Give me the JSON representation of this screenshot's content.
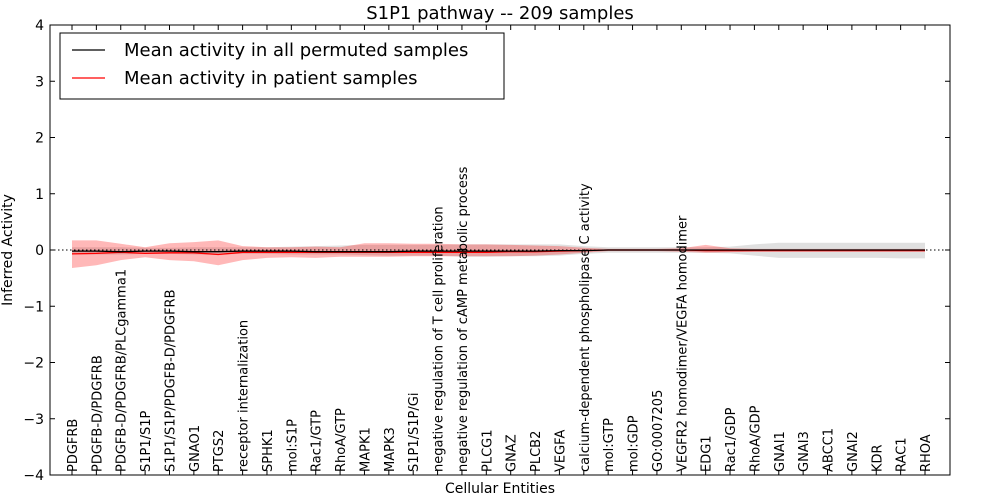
{
  "chart_data": {
    "type": "line",
    "title": "S1P1 pathway -- 209 samples",
    "xlabel": "Cellular Entities",
    "ylabel": "Inferred Activity",
    "ylim": [
      -4,
      4
    ],
    "yticks": [
      -4,
      -3,
      -2,
      -1,
      0,
      1,
      2,
      3,
      4
    ],
    "ytick_labels": [
      "−4",
      "−3",
      "−2",
      "−1",
      "0",
      "1",
      "2",
      "3",
      "4"
    ],
    "legend_position": "top-left",
    "legend": [
      {
        "label": "Mean activity in all permuted samples",
        "color": "#000000"
      },
      {
        "label": "Mean activity in patient samples",
        "color": "#ff0000"
      }
    ],
    "categories": [
      "PDGFRB",
      "PDGFB-D/PDGFRB",
      "PDGFB-D/PDGFRB/PLCgamma1",
      "S1P1/S1P",
      "S1P1/S1P/PDGFB-D/PDGFRB",
      "GNAO1",
      "PTGS2",
      "receptor internalization",
      "SPHK1",
      "mol:S1P",
      "Rac1/GTP",
      "RhoA/GTP",
      "MAPK1",
      "MAPK3",
      "S1P1/S1P/Gi",
      "negative regulation of T cell proliferation",
      "negative regulation of cAMP metabolic process",
      "PLCG1",
      "GNAZ",
      "PLCB2",
      "VEGFA",
      "calcium-dependent phospholipase C activity",
      "mol:GTP",
      "mol:GDP",
      "GO:0007205",
      "VEGFR2 homodimer/VEGFA homodimer",
      "EDG1",
      "Rac1/GDP",
      "RhoA/GDP",
      "GNAI1",
      "GNAI3",
      "ABCC1",
      "GNAI2",
      "KDR",
      "RAC1",
      "RHOA"
    ],
    "series": [
      {
        "name": "Mean activity in all permuted samples",
        "color": "#000000",
        "values": [
          -0.02,
          -0.02,
          -0.03,
          -0.02,
          -0.02,
          -0.03,
          -0.03,
          -0.02,
          -0.02,
          -0.02,
          -0.03,
          -0.03,
          -0.03,
          -0.03,
          -0.02,
          -0.02,
          -0.02,
          -0.02,
          -0.02,
          -0.02,
          -0.01,
          -0.01,
          0.0,
          0.0,
          0.0,
          0.0,
          0.0,
          0.0,
          0.0,
          0.0,
          0.0,
          0.0,
          0.0,
          0.0,
          0.0,
          0.0
        ],
        "lower": [
          -0.08,
          -0.08,
          -0.08,
          -0.07,
          -0.07,
          -0.08,
          -0.08,
          -0.07,
          -0.07,
          -0.08,
          -0.08,
          -0.08,
          -0.09,
          -0.1,
          -0.1,
          -0.1,
          -0.12,
          -0.12,
          -0.11,
          -0.11,
          -0.1,
          -0.07,
          -0.05,
          -0.05,
          -0.05,
          -0.05,
          -0.05,
          -0.06,
          -0.1,
          -0.14,
          -0.14,
          -0.14,
          -0.14,
          -0.14,
          -0.15,
          -0.15
        ],
        "upper": [
          0.05,
          0.05,
          0.05,
          0.04,
          0.04,
          0.05,
          0.05,
          0.05,
          0.05,
          0.06,
          0.07,
          0.08,
          0.09,
          0.09,
          0.09,
          0.09,
          0.1,
          0.1,
          0.1,
          0.1,
          0.1,
          0.07,
          0.05,
          0.05,
          0.05,
          0.05,
          0.05,
          0.06,
          0.1,
          0.13,
          0.13,
          0.13,
          0.13,
          0.13,
          0.13,
          0.13
        ]
      },
      {
        "name": "Mean activity in patient samples",
        "color": "#ff0000",
        "values": [
          -0.07,
          -0.06,
          -0.04,
          -0.06,
          -0.05,
          -0.05,
          -0.08,
          -0.04,
          -0.04,
          -0.04,
          -0.04,
          -0.04,
          -0.04,
          -0.04,
          -0.04,
          -0.04,
          -0.04,
          -0.04,
          -0.03,
          -0.03,
          -0.02,
          -0.01,
          0.0,
          0.0,
          0.0,
          0.0,
          -0.01,
          -0.01,
          -0.01,
          -0.01,
          -0.01,
          -0.01,
          -0.01,
          -0.01,
          -0.01,
          -0.01
        ],
        "lower": [
          -0.32,
          -0.27,
          -0.18,
          -0.13,
          -0.18,
          -0.2,
          -0.27,
          -0.18,
          -0.14,
          -0.13,
          -0.14,
          -0.12,
          -0.12,
          -0.12,
          -0.11,
          -0.11,
          -0.11,
          -0.11,
          -0.11,
          -0.1,
          -0.08,
          -0.05,
          -0.02,
          -0.02,
          -0.02,
          -0.03,
          -0.05,
          -0.04,
          -0.03,
          -0.03,
          -0.03,
          -0.03,
          -0.03,
          -0.03,
          -0.03,
          -0.03
        ],
        "upper": [
          0.17,
          0.17,
          0.11,
          0.05,
          0.12,
          0.14,
          0.17,
          0.07,
          0.05,
          0.05,
          0.06,
          0.05,
          0.12,
          0.12,
          0.11,
          0.11,
          0.1,
          0.1,
          0.09,
          0.08,
          0.07,
          0.04,
          0.02,
          0.02,
          0.02,
          0.03,
          0.09,
          0.03,
          0.02,
          0.02,
          0.02,
          0.02,
          0.02,
          0.02,
          0.02,
          0.02
        ]
      }
    ]
  }
}
